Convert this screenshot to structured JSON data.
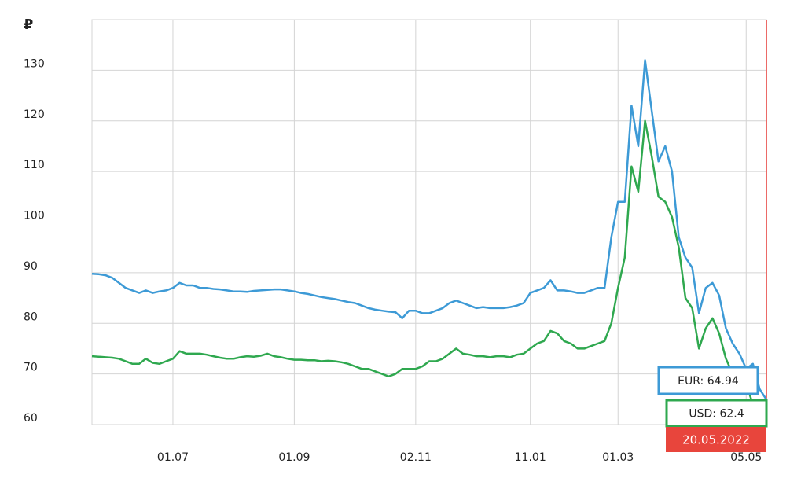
{
  "chart_data": {
    "type": "line",
    "y_unit": "₽",
    "date_label": "20.05.2022",
    "categories": [
      null,
      null,
      null,
      null,
      null,
      null,
      null,
      null,
      null,
      null,
      null,
      null,
      "01.07",
      null,
      null,
      null,
      null,
      null,
      null,
      null,
      null,
      null,
      null,
      null,
      null,
      null,
      null,
      null,
      null,
      null,
      "01.09",
      null,
      null,
      null,
      null,
      null,
      null,
      null,
      null,
      null,
      null,
      null,
      null,
      null,
      null,
      null,
      null,
      null,
      "02.11",
      null,
      null,
      null,
      null,
      null,
      null,
      null,
      null,
      null,
      null,
      null,
      null,
      null,
      null,
      null,
      null,
      "11.01",
      null,
      null,
      null,
      null,
      null,
      null,
      null,
      null,
      null,
      null,
      null,
      null,
      "01.03",
      null,
      null,
      null,
      null,
      null,
      null,
      null,
      null,
      null,
      null,
      null,
      null,
      null,
      null,
      null,
      null,
      null,
      null,
      "05.05",
      null,
      null,
      null
    ],
    "series": [
      {
        "name": "EUR: 64.94",
        "color": "#3d9ad6",
        "values": [
          89.8,
          89.7,
          89.5,
          89,
          88,
          87,
          86.5,
          86,
          86.5,
          86,
          86.3,
          86.5,
          87,
          88,
          87.5,
          87.5,
          87,
          87,
          86.8,
          86.7,
          86.5,
          86.3,
          86.3,
          86.2,
          86.4,
          86.5,
          86.6,
          86.7,
          86.7,
          86.5,
          86.3,
          86,
          85.8,
          85.5,
          85.2,
          85,
          84.8,
          84.5,
          84.2,
          84,
          83.5,
          83,
          82.7,
          82.5,
          82.3,
          82.2,
          81,
          82.5,
          82.5,
          82,
          82,
          82.5,
          83,
          84,
          84.5,
          84,
          83.5,
          83,
          83.2,
          83,
          83,
          83,
          83.2,
          83.5,
          84,
          86,
          86.5,
          87,
          88.5,
          86.5,
          86.5,
          86.3,
          86,
          86,
          86.5,
          87,
          87,
          97,
          104,
          104,
          123,
          115,
          132,
          122,
          112,
          115,
          110,
          97,
          93,
          91,
          82,
          87,
          88,
          85.5,
          79,
          76,
          74,
          71,
          72,
          67,
          64.94
        ]
      },
      {
        "name": "USD: 62.4",
        "color": "#2fa84f",
        "values": [
          73.5,
          73.4,
          73.3,
          73.2,
          73,
          72.5,
          72,
          72,
          73,
          72.2,
          72,
          72.5,
          73,
          74.5,
          74,
          74,
          74,
          73.8,
          73.5,
          73.2,
          73,
          73,
          73.3,
          73.5,
          73.4,
          73.6,
          74,
          73.5,
          73.3,
          73,
          72.8,
          72.8,
          72.7,
          72.7,
          72.5,
          72.6,
          72.5,
          72.3,
          72,
          71.5,
          71,
          71,
          70.5,
          70,
          69.5,
          70,
          71,
          71,
          71,
          71.5,
          72.5,
          72.5,
          73,
          74,
          75,
          74,
          73.8,
          73.5,
          73.5,
          73.3,
          73.5,
          73.5,
          73.3,
          73.8,
          74,
          75,
          76,
          76.5,
          78.5,
          78,
          76.5,
          76,
          75,
          75,
          75.5,
          76,
          76.5,
          80,
          87,
          93,
          111,
          106,
          120,
          113,
          105,
          104,
          101,
          95,
          85,
          83,
          75,
          79,
          81,
          78,
          73,
          70,
          69,
          68,
          64,
          60.5,
          62.4
        ]
      }
    ],
    "ylim": [
      60,
      140
    ],
    "yticks": [
      60,
      70,
      80,
      90,
      100,
      110,
      120,
      130
    ],
    "grid": true
  }
}
